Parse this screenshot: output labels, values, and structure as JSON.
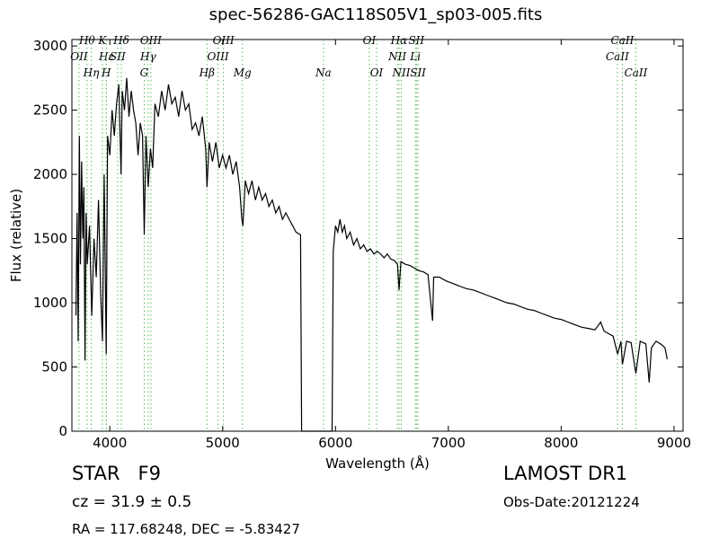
{
  "chart_data": {
    "type": "line",
    "title": "spec-56286-GAC118S05V1_sp03-005.fits",
    "xlabel": "Wavelength (Å)",
    "ylabel": "Flux (relative)",
    "xlim": [
      3664,
      9080
    ],
    "ylim": [
      0,
      3050
    ],
    "xticks": [
      4000,
      5000,
      6000,
      7000,
      8000,
      9000
    ],
    "yticks": [
      0,
      500,
      1000,
      1500,
      2000,
      2500,
      3000
    ],
    "color": "#000000",
    "line_color": "#5cb85c",
    "x": [
      3700,
      3710,
      3720,
      3730,
      3740,
      3750,
      3760,
      3770,
      3780,
      3790,
      3800,
      3820,
      3840,
      3860,
      3880,
      3900,
      3920,
      3935,
      3950,
      3968,
      3980,
      4000,
      4020,
      4040,
      4060,
      4080,
      4100,
      4110,
      4130,
      4150,
      4170,
      4190,
      4210,
      4230,
      4250,
      4270,
      4290,
      4305,
      4320,
      4340,
      4360,
      4380,
      4400,
      4430,
      4460,
      4490,
      4520,
      4550,
      4580,
      4610,
      4640,
      4670,
      4700,
      4730,
      4760,
      4790,
      4820,
      4850,
      4861,
      4880,
      4910,
      4940,
      4970,
      5000,
      5030,
      5060,
      5090,
      5120,
      5150,
      5170,
      5180,
      5200,
      5230,
      5260,
      5290,
      5320,
      5350,
      5380,
      5410,
      5440,
      5470,
      5500,
      5530,
      5560,
      5590,
      5620,
      5650,
      5690,
      5700,
      5970,
      5980,
      6000,
      6020,
      6040,
      6060,
      6080,
      6100,
      6130,
      6160,
      6190,
      6220,
      6250,
      6280,
      6310,
      6340,
      6370,
      6400,
      6430,
      6460,
      6490,
      6520,
      6550,
      6563,
      6580,
      6620,
      6660,
      6700,
      6740,
      6780,
      6820,
      6860,
      6870,
      6920,
      6980,
      7040,
      7100,
      7160,
      7220,
      7280,
      7340,
      7400,
      7460,
      7520,
      7580,
      7640,
      7700,
      7760,
      7820,
      7880,
      7940,
      8000,
      8060,
      8120,
      8180,
      8240,
      8300,
      8350,
      8380,
      8420,
      8460,
      8500,
      8530,
      8542,
      8580,
      8620,
      8662,
      8700,
      8750,
      8780,
      8800,
      8840,
      8880,
      8920,
      8940
    ],
    "values": [
      900,
      1700,
      700,
      2300,
      1300,
      2100,
      1500,
      1900,
      550,
      1700,
      1300,
      1600,
      900,
      1500,
      1200,
      1800,
      1050,
      700,
      2000,
      600,
      2300,
      2150,
      2500,
      2300,
      2550,
      2700,
      2000,
      2650,
      2500,
      2750,
      2450,
      2650,
      2500,
      2400,
      2150,
      2400,
      2300,
      1530,
      2300,
      1900,
      2200,
      2050,
      2550,
      2450,
      2650,
      2500,
      2700,
      2550,
      2600,
      2450,
      2650,
      2500,
      2550,
      2350,
      2400,
      2300,
      2450,
      2200,
      1900,
      2250,
      2100,
      2250,
      2050,
      2150,
      2050,
      2150,
      2000,
      2100,
      1900,
      1650,
      1600,
      1950,
      1850,
      1950,
      1800,
      1900,
      1800,
      1850,
      1750,
      1800,
      1700,
      1750,
      1650,
      1700,
      1650,
      1600,
      1550,
      1530,
      0,
      0,
      1400,
      1600,
      1550,
      1650,
      1550,
      1600,
      1500,
      1550,
      1450,
      1500,
      1420,
      1450,
      1400,
      1420,
      1380,
      1400,
      1380,
      1350,
      1380,
      1340,
      1330,
      1300,
      1100,
      1320,
      1300,
      1290,
      1270,
      1250,
      1240,
      1220,
      860,
      1200,
      1200,
      1170,
      1150,
      1130,
      1110,
      1100,
      1080,
      1060,
      1040,
      1020,
      1000,
      990,
      970,
      950,
      940,
      920,
      900,
      880,
      870,
      850,
      830,
      810,
      800,
      790,
      850,
      780,
      760,
      740,
      600,
      700,
      520,
      700,
      690,
      450,
      700,
      680,
      380,
      650,
      700,
      680,
      650,
      560
    ],
    "spectral_line_rows": [
      [
        {
          "label": "Hθ",
          "wavelength": 3798
        },
        {
          "label": "K",
          "wavelength": 3934
        },
        {
          "label": "Hδ",
          "wavelength": 4102
        },
        {
          "label": "OIII",
          "wavelength": 4364
        },
        {
          "label": "OIII",
          "wavelength": 5007
        },
        {
          "label": "OI",
          "wavelength": 6300
        },
        {
          "label": "Hα",
          "wavelength": 6563
        },
        {
          "label": "SII",
          "wavelength": 6717
        },
        {
          "label": "CaII",
          "wavelength": 8542
        }
      ],
      [
        {
          "label": "OII",
          "wavelength": 3727
        },
        {
          "label": "Hε",
          "wavelength": 3970
        },
        {
          "label": "SII",
          "wavelength": 4069
        },
        {
          "label": "Hγ",
          "wavelength": 4340
        },
        {
          "label": "OIII",
          "wavelength": 4959
        },
        {
          "label": "NII",
          "wavelength": 6548
        },
        {
          "label": "Li",
          "wavelength": 6708
        },
        {
          "label": "CaII",
          "wavelength": 8498
        }
      ],
      [
        {
          "label": "Hη",
          "wavelength": 3835
        },
        {
          "label": "H",
          "wavelength": 3969
        },
        {
          "label": "G",
          "wavelength": 4305
        },
        {
          "label": "Hβ",
          "wavelength": 4861
        },
        {
          "label": "Mg",
          "wavelength": 5175
        },
        {
          "label": "Na",
          "wavelength": 5893
        },
        {
          "label": "OI",
          "wavelength": 6364
        },
        {
          "label": "NII",
          "wavelength": 6583
        },
        {
          "label": "SII",
          "wavelength": 6731
        },
        {
          "label": "CaII",
          "wavelength": 8662
        }
      ]
    ],
    "annotations": [
      "STAR   F9",
      "cz = 31.9 ± 0.5",
      "RA = 117.68248, DEC = -5.83427",
      "LAMOST DR1",
      "Obs-Date:20121224"
    ]
  }
}
